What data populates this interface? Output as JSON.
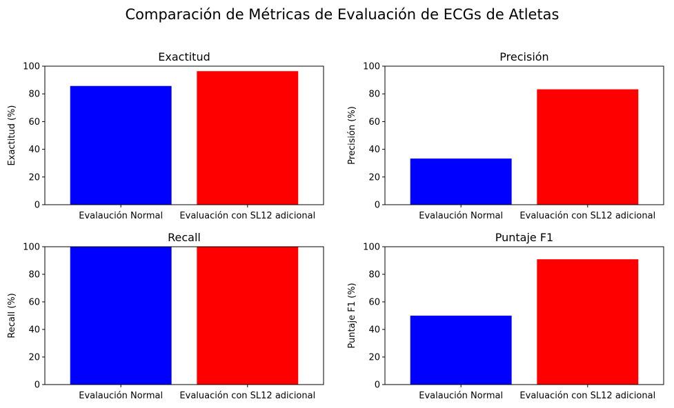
{
  "figure": {
    "title": "Comparación de Métricas de Evaluación de ECGs de Atletas"
  },
  "chart_data": [
    {
      "type": "bar",
      "title": "Exactitud",
      "ylabel": "Exactitud (%)",
      "xlabel": "",
      "categories": [
        "Evalaución Normal",
        "Evaluación con SL12 adicional"
      ],
      "values": [
        85.7,
        96.4
      ],
      "colors": [
        "#0000ff",
        "#ff0000"
      ],
      "ylim": [
        0,
        100
      ],
      "yticks": [
        0,
        20,
        40,
        60,
        80,
        100
      ],
      "grid": false
    },
    {
      "type": "bar",
      "title": "Precisión",
      "ylabel": "Precisión (%)",
      "xlabel": "",
      "categories": [
        "Evalaución Normal",
        "Evaluación con SL12 adicional"
      ],
      "values": [
        33.3,
        83.3
      ],
      "colors": [
        "#0000ff",
        "#ff0000"
      ],
      "ylim": [
        0,
        100
      ],
      "yticks": [
        0,
        20,
        40,
        60,
        80,
        100
      ],
      "grid": false
    },
    {
      "type": "bar",
      "title": "Recall",
      "ylabel": "Recall (%)",
      "xlabel": "",
      "categories": [
        "Evalaución Normal",
        "Evaluación con SL12 adicional"
      ],
      "values": [
        100,
        100
      ],
      "colors": [
        "#0000ff",
        "#ff0000"
      ],
      "ylim": [
        0,
        100
      ],
      "yticks": [
        0,
        20,
        40,
        60,
        80,
        100
      ],
      "grid": false
    },
    {
      "type": "bar",
      "title": "Puntaje F1",
      "ylabel": "Puntaje F1 (%)",
      "xlabel": "",
      "categories": [
        "Evalaución Normal",
        "Evaluación con SL12 adicional"
      ],
      "values": [
        50,
        90.9
      ],
      "colors": [
        "#0000ff",
        "#ff0000"
      ],
      "ylim": [
        0,
        100
      ],
      "yticks": [
        0,
        20,
        40,
        60,
        80,
        100
      ],
      "grid": false
    }
  ]
}
